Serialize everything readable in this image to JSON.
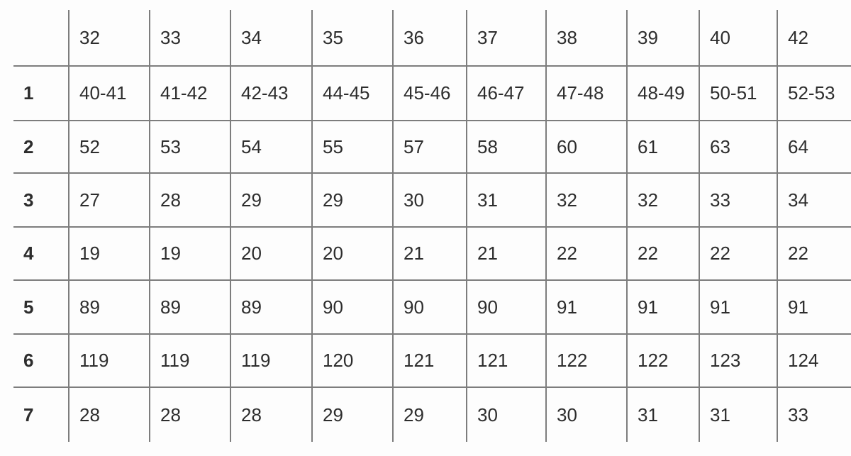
{
  "chart_data": {
    "type": "table",
    "columns": [
      "32",
      "33",
      "34",
      "35",
      "36",
      "37",
      "38",
      "39",
      "40",
      "42"
    ],
    "row_labels": [
      "1",
      "2",
      "3",
      "4",
      "5",
      "6",
      "7"
    ],
    "rows": [
      {
        "label": "1",
        "values": [
          "40-41",
          "41-42",
          "42-43",
          "44-45",
          "45-46",
          "46-47",
          "47-48",
          "48-49",
          "50-51",
          "52-53"
        ]
      },
      {
        "label": "2",
        "values": [
          "52",
          "53",
          "54",
          "55",
          "57",
          "58",
          "60",
          "61",
          "63",
          "64"
        ]
      },
      {
        "label": "3",
        "values": [
          "27",
          "28",
          "29",
          "29",
          "30",
          "31",
          "32",
          "32",
          "33",
          "34"
        ]
      },
      {
        "label": "4",
        "values": [
          "19",
          "19",
          "20",
          "20",
          "21",
          "21",
          "22",
          "22",
          "22",
          "22"
        ]
      },
      {
        "label": "5",
        "values": [
          "89",
          "89",
          "89",
          "90",
          "90",
          "90",
          "91",
          "91",
          "91",
          "91"
        ]
      },
      {
        "label": "6",
        "values": [
          "119",
          "119",
          "119",
          "120",
          "121",
          "121",
          "122",
          "122",
          "123",
          "124"
        ]
      },
      {
        "label": "7",
        "values": [
          "28",
          "28",
          "28",
          "29",
          "29",
          "30",
          "30",
          "31",
          "31",
          "33"
        ]
      }
    ],
    "corner_label": "",
    "title": "",
    "layout": "grid with inner borders only, header row on top, bold row-label column on left"
  },
  "colors": {
    "grid_line": "#7d7d7d",
    "text": "#2d2d2d",
    "background": "#fdfdfd"
  }
}
